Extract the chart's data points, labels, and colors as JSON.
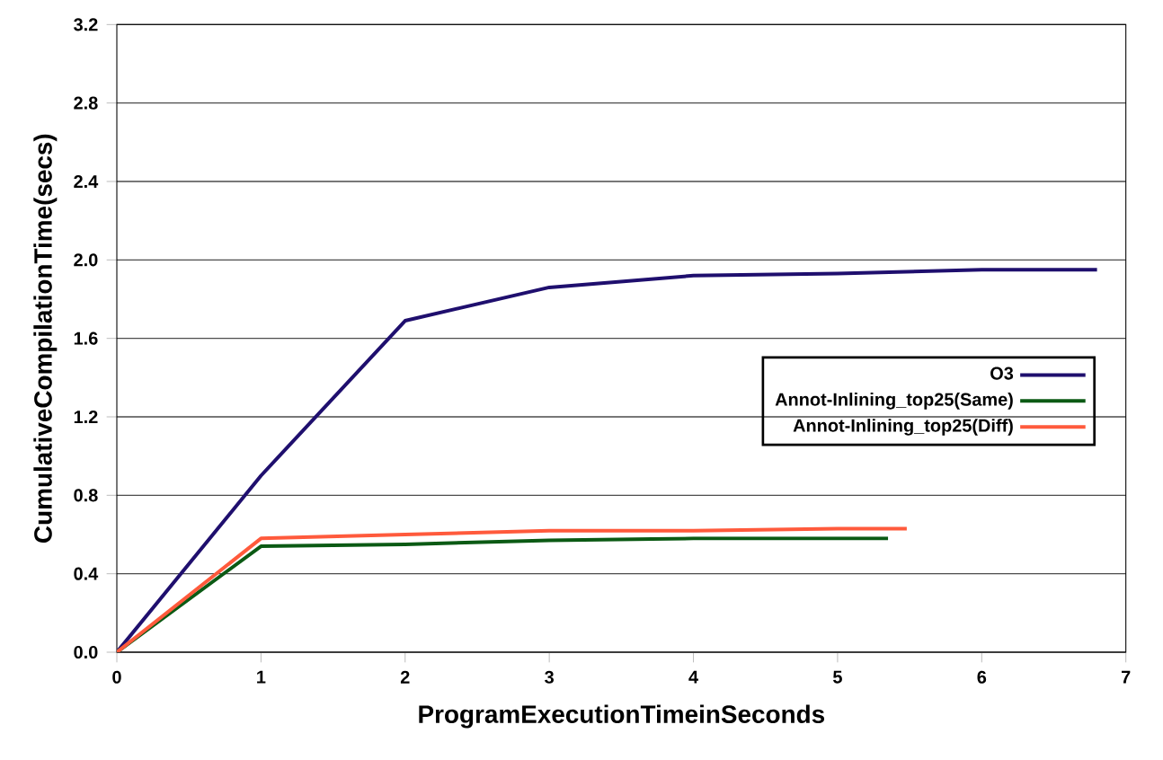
{
  "chart_data": {
    "type": "line",
    "xlabel": "ProgramExecutionTimeinSeconds",
    "ylabel": "CumulativeCompilationTime(secs)",
    "series": [
      {
        "name": "O3",
        "color": "#1f0f6e",
        "x": [
          0,
          1,
          2,
          3,
          4,
          5,
          6,
          6.8
        ],
        "values": [
          0,
          0.9,
          1.69,
          1.86,
          1.92,
          1.93,
          1.95,
          1.95
        ]
      },
      {
        "name": "Annot-Inlining_top25(Same)",
        "color": "#0b5a14",
        "x": [
          0,
          1,
          2,
          3,
          4,
          5,
          5.35
        ],
        "values": [
          0,
          0.54,
          0.55,
          0.57,
          0.58,
          0.58,
          0.58
        ]
      },
      {
        "name": "Annot-Inlining_top25(Diff)",
        "color": "#ff5a3c",
        "x": [
          0,
          1,
          2,
          3,
          4,
          5,
          5.48
        ],
        "values": [
          0,
          0.58,
          0.6,
          0.62,
          0.62,
          0.63,
          0.63
        ]
      }
    ],
    "xlim": [
      0,
      7
    ],
    "xticks": [
      0,
      1,
      2,
      3,
      4,
      5,
      6,
      7
    ],
    "ylim": [
      0,
      3.2
    ],
    "yticks": [
      {
        "value": 0,
        "label": "0.0"
      },
      {
        "value": 0.4,
        "label": "0.4"
      },
      {
        "value": 0.8,
        "label": "0.8"
      },
      {
        "value": 1.2,
        "label": "1.2"
      },
      {
        "value": 1.6,
        "label": "1.6"
      },
      {
        "value": 2.0,
        "label": "2.0"
      },
      {
        "value": 2.4,
        "label": "2.4"
      },
      {
        "value": 2.8,
        "label": "2.8"
      },
      {
        "value": 3.2,
        "label": "3.2"
      }
    ],
    "grid": "y",
    "legend": "right",
    "marker": "none",
    "line_style": "solid"
  }
}
